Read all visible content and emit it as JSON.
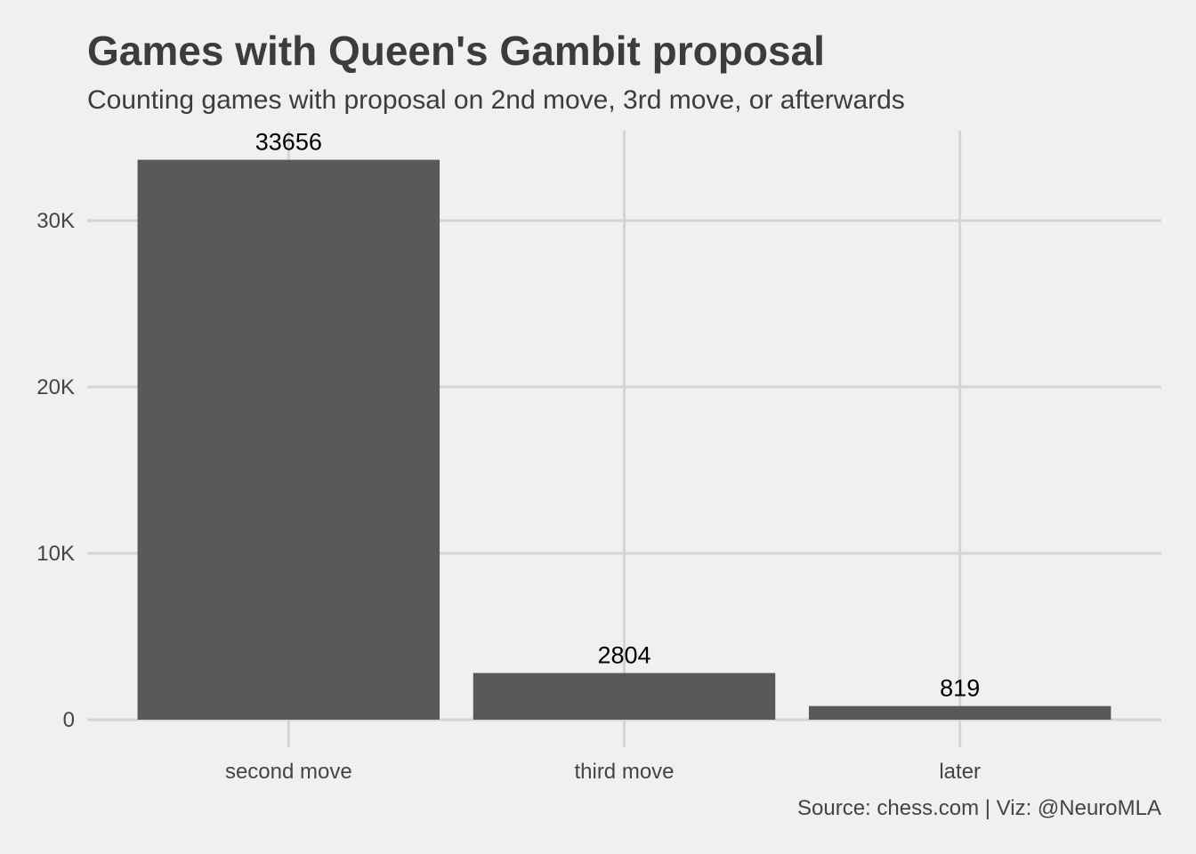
{
  "chart_data": {
    "type": "bar",
    "title": "Games with Queen's Gambit proposal",
    "subtitle": "Counting games with proposal on 2nd move, 3rd move, or afterwards",
    "caption": "Source: chess.com | Viz: @NeuroMLA",
    "categories": [
      "second move",
      "third move",
      "later"
    ],
    "values": [
      33656,
      2804,
      819
    ],
    "data_labels": [
      "33656",
      "2804",
      "819"
    ],
    "y_ticks": [
      {
        "value": 0,
        "label": "0"
      },
      {
        "value": 10000,
        "label": "10K"
      },
      {
        "value": 20000,
        "label": "20K"
      },
      {
        "value": 30000,
        "label": "30K"
      }
    ],
    "ylim": [
      0,
      35400
    ],
    "xlabel": "",
    "ylabel": "",
    "grid": true,
    "legend": "none",
    "bar_color": "#595959",
    "background_color": "#f0f0f0",
    "grid_color": "#d4d4d4"
  }
}
